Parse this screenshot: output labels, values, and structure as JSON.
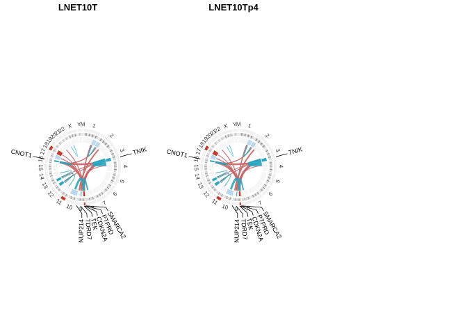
{
  "panels": [
    {
      "title": "LNET10T",
      "genes": [
        {
          "name": "TNIK",
          "chrom": "3"
        },
        {
          "name": "CNOT1",
          "chrom": "16"
        },
        {
          "name": "SMARCA2",
          "chrom": "9"
        },
        {
          "name": "PTPRD",
          "chrom": "9"
        },
        {
          "name": "CDKN2A",
          "chrom": "9"
        },
        {
          "name": "TEK",
          "chrom": "9"
        },
        {
          "name": "TDRD7",
          "chrom": "9"
        },
        {
          "name": "NUP214",
          "chrom": "9"
        }
      ]
    },
    {
      "title": "LNET10Tp4",
      "genes": [
        {
          "name": "TNIK",
          "chrom": "3"
        },
        {
          "name": "CNOT1",
          "chrom": "16"
        },
        {
          "name": "SMARCA2",
          "chrom": "9"
        },
        {
          "name": "PTPRD",
          "chrom": "9"
        },
        {
          "name": "CDKN2A",
          "chrom": "9"
        },
        {
          "name": "TEK",
          "chrom": "9"
        },
        {
          "name": "TDRD7",
          "chrom": "9"
        },
        {
          "name": "NUP214",
          "chrom": "9"
        }
      ]
    }
  ],
  "chromosomes": [
    "1",
    "2",
    "3",
    "4",
    "5",
    "6",
    "7",
    "8",
    "9",
    "10",
    "11",
    "12",
    "13",
    "14",
    "15",
    "16",
    "17",
    "18",
    "19",
    "20",
    "21",
    "22",
    "X",
    "Y",
    "M"
  ],
  "colors": {
    "ideogram_light": "#dcdcdc",
    "ideogram_dark": "#9a9a9a",
    "gain": "#c43c2c",
    "loss": "#2aa7c0",
    "link_inter": "#c76466",
    "link_intra": "#2aa7c0",
    "cn_light": "#bcd8ea"
  }
}
